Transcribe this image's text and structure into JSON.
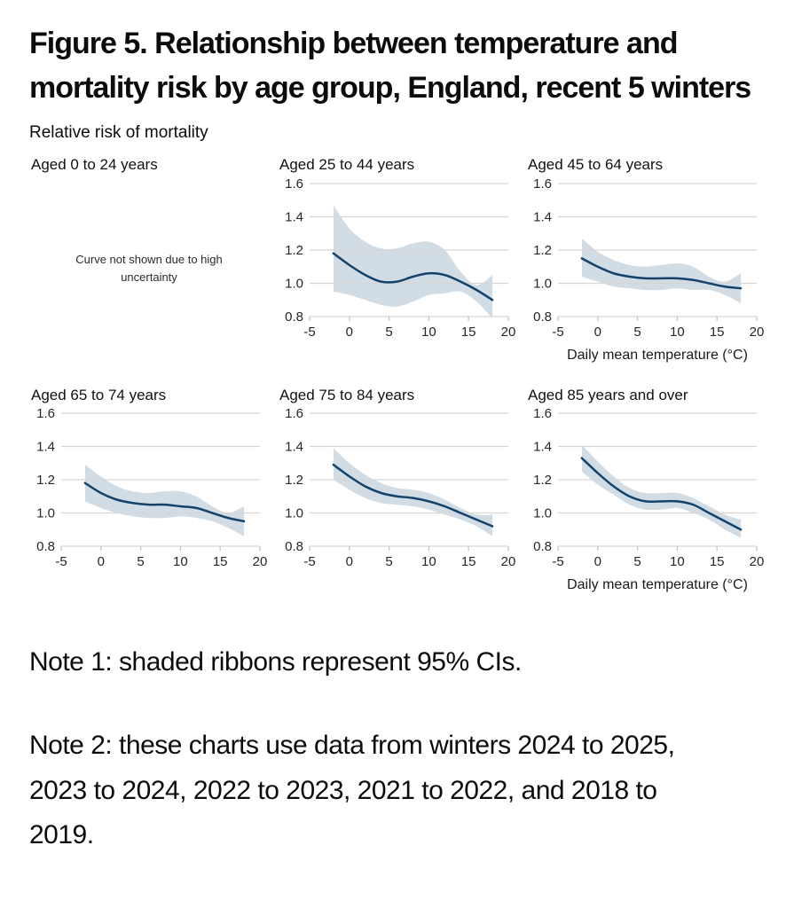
{
  "figure": {
    "title": "Figure 5. Relationship between temperature and mortality risk by age group, England, recent 5 winters",
    "y_axis_title": "Relative risk of mortality",
    "x_axis_title": "Daily mean temperature (°C)",
    "note1": "Note 1: shaded ribbons represent 95% CIs.",
    "note2": "Note 2: these charts use data from winters 2024 to 2025, 2023 to 2024, 2022 to 2023, 2021 to 2022, and 2018 to 2019."
  },
  "colors": {
    "line": "#12436D",
    "ribbon": "rgba(18,67,109,0.19)",
    "grid": "#d6d6d6",
    "axis_tick": "#c2c2c2",
    "tick_text": "#262626",
    "text": "#0b0c0c"
  },
  "axes": {
    "x_ticks": [
      -5,
      0,
      5,
      10,
      15,
      20
    ],
    "y_ticks": [
      0.8,
      1.0,
      1.2,
      1.4,
      1.6
    ],
    "x_range": [
      -5,
      20
    ],
    "y_range": [
      0.8,
      1.6
    ]
  },
  "panels": [
    {
      "label": "Aged 0 to 24 years",
      "has_chart": false,
      "empty_message": "Curve not shown due to high uncertainty"
    },
    {
      "label": "Aged 25 to 44 years",
      "has_chart": true,
      "series": 0
    },
    {
      "label": "Aged 45 to 64 years",
      "has_chart": true,
      "series": 1
    },
    {
      "label": "Aged 65 to 74 years",
      "has_chart": true,
      "series": 2
    },
    {
      "label": "Aged 75 to 84 years",
      "has_chart": true,
      "series": 3
    },
    {
      "label": "Aged 85 years and over",
      "has_chart": true,
      "series": 4
    }
  ],
  "chart_data": [
    {
      "type": "line",
      "name": "Aged 25 to 44 years",
      "title": "Aged 25 to 44 years",
      "xlabel": "",
      "ylabel": "Relative risk of mortality",
      "xlim": [
        -5,
        20
      ],
      "ylim": [
        0.8,
        1.6
      ],
      "x": [
        -2,
        0,
        2,
        4,
        6,
        8,
        10,
        12,
        14,
        16,
        18
      ],
      "y": [
        1.18,
        1.11,
        1.05,
        1.01,
        1.01,
        1.04,
        1.06,
        1.05,
        1.01,
        0.96,
        0.9
      ],
      "ci_low": [
        0.95,
        0.93,
        0.9,
        0.87,
        0.86,
        0.89,
        0.93,
        0.94,
        0.95,
        0.89,
        0.79
      ],
      "ci_high": [
        1.47,
        1.33,
        1.25,
        1.21,
        1.21,
        1.24,
        1.25,
        1.2,
        1.07,
        0.99,
        1.05
      ]
    },
    {
      "type": "line",
      "name": "Aged 45 to 64 years",
      "title": "Aged 45 to 64 years",
      "xlabel": "Daily mean temperature (°C)",
      "ylabel": "Relative risk of mortality",
      "xlim": [
        -5,
        20
      ],
      "ylim": [
        0.8,
        1.6
      ],
      "x": [
        -2,
        0,
        2,
        4,
        6,
        8,
        10,
        12,
        14,
        16,
        18
      ],
      "y": [
        1.15,
        1.1,
        1.06,
        1.04,
        1.03,
        1.03,
        1.03,
        1.02,
        1.0,
        0.98,
        0.97
      ],
      "ci_low": [
        1.04,
        1.01,
        0.98,
        0.97,
        0.96,
        0.96,
        0.97,
        0.96,
        0.96,
        0.93,
        0.88
      ],
      "ci_high": [
        1.27,
        1.19,
        1.14,
        1.11,
        1.1,
        1.11,
        1.12,
        1.1,
        1.04,
        1.01,
        1.06
      ]
    },
    {
      "type": "line",
      "name": "Aged 65 to 74 years",
      "title": "Aged 65 to 74 years",
      "xlabel": "",
      "ylabel": "Relative risk of mortality",
      "xlim": [
        -5,
        20
      ],
      "ylim": [
        0.8,
        1.6
      ],
      "x": [
        -2,
        0,
        2,
        4,
        6,
        8,
        10,
        12,
        14,
        16,
        18
      ],
      "y": [
        1.18,
        1.12,
        1.08,
        1.06,
        1.05,
        1.05,
        1.04,
        1.03,
        1.0,
        0.97,
        0.95
      ],
      "ci_low": [
        1.07,
        1.03,
        1.0,
        0.98,
        0.97,
        0.97,
        0.98,
        0.97,
        0.95,
        0.91,
        0.86
      ],
      "ci_high": [
        1.29,
        1.22,
        1.16,
        1.13,
        1.12,
        1.13,
        1.13,
        1.1,
        1.04,
        1.0,
        1.04
      ]
    },
    {
      "type": "line",
      "name": "Aged 75 to 84 years",
      "title": "Aged 75 to 84 years",
      "xlabel": "",
      "ylabel": "Relative risk of mortality",
      "xlim": [
        -5,
        20
      ],
      "ylim": [
        0.8,
        1.6
      ],
      "x": [
        -2,
        0,
        2,
        4,
        6,
        8,
        10,
        12,
        14,
        16,
        18
      ],
      "y": [
        1.29,
        1.22,
        1.16,
        1.12,
        1.1,
        1.09,
        1.07,
        1.04,
        1.0,
        0.96,
        0.92
      ],
      "ci_low": [
        1.2,
        1.14,
        1.09,
        1.06,
        1.05,
        1.04,
        1.02,
        0.99,
        0.96,
        0.92,
        0.86
      ],
      "ci_high": [
        1.39,
        1.3,
        1.23,
        1.18,
        1.15,
        1.14,
        1.12,
        1.08,
        1.03,
        0.99,
        0.99
      ]
    },
    {
      "type": "line",
      "name": "Aged 85 years and over",
      "title": "Aged 85 years and over",
      "xlabel": "Daily mean temperature (°C)",
      "ylabel": "Relative risk of mortality",
      "xlim": [
        -5,
        20
      ],
      "ylim": [
        0.8,
        1.6
      ],
      "x": [
        -2,
        0,
        2,
        4,
        6,
        8,
        10,
        12,
        14,
        16,
        18
      ],
      "y": [
        1.33,
        1.24,
        1.16,
        1.1,
        1.07,
        1.07,
        1.07,
        1.05,
        1.0,
        0.95,
        0.9
      ],
      "ci_low": [
        1.25,
        1.17,
        1.11,
        1.05,
        1.02,
        1.02,
        1.03,
        1.0,
        0.96,
        0.9,
        0.85
      ],
      "ci_high": [
        1.41,
        1.31,
        1.22,
        1.15,
        1.12,
        1.12,
        1.12,
        1.09,
        1.04,
        0.99,
        0.96
      ]
    }
  ]
}
